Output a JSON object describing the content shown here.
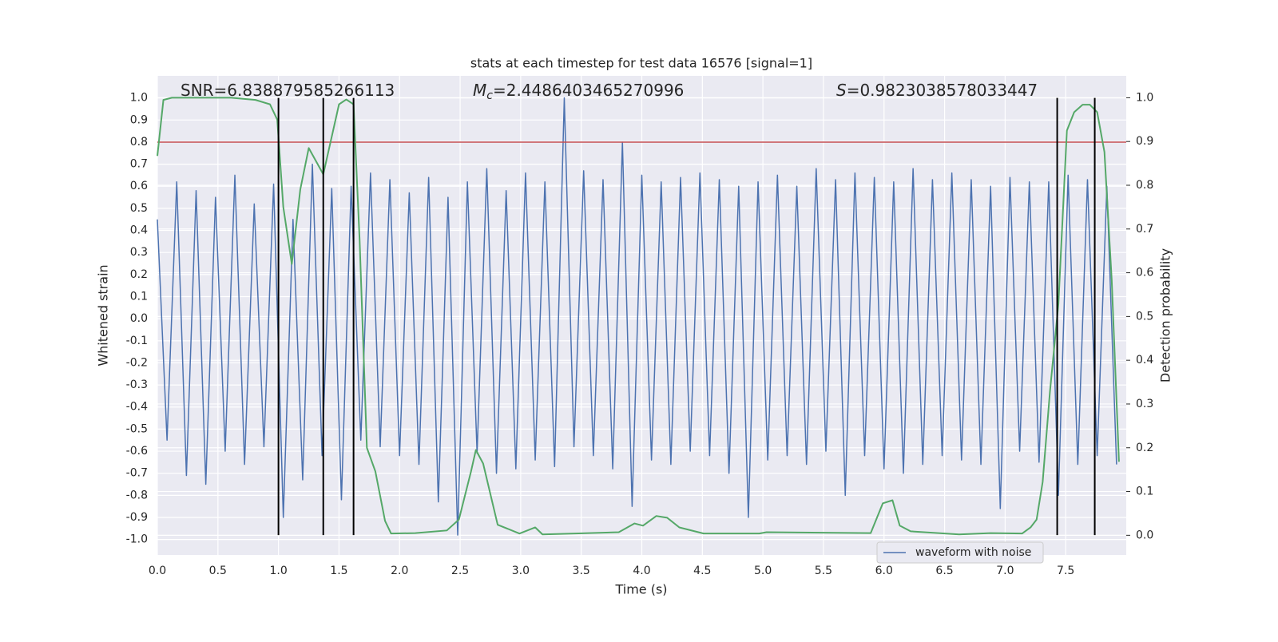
{
  "chart_data": {
    "type": "line",
    "title": "stats at each timestep for test data 16576 [signal=1]",
    "xlabel": "Time (s)",
    "ylabel": "Whitened strain",
    "y2label": "Detection probability",
    "xlim": [
      0,
      8.0
    ],
    "ylim": [
      -1.07,
      1.1
    ],
    "y2lim": [
      -0.045,
      1.05
    ],
    "xticks": [
      {
        "value": 0,
        "label": "0.0"
      },
      0.5,
      {
        "value": 1,
        "label": "1.0"
      },
      1.5,
      {
        "value": 2,
        "label": "2.0"
      },
      2.5,
      {
        "value": 3,
        "label": "3.0"
      },
      3.5,
      {
        "value": 4,
        "label": "4.0"
      },
      4.5,
      {
        "value": 5,
        "label": "5.0"
      },
      5.5,
      {
        "value": 6,
        "label": "6.0"
      },
      6.5,
      {
        "value": 7,
        "label": "7.0"
      },
      7.5
    ],
    "yticks": [
      {
        "value": -1,
        "label": "-1.0"
      },
      -0.9,
      -0.8,
      -0.7,
      -0.6,
      -0.5,
      -0.4,
      -0.3,
      -0.2,
      -0.1,
      {
        "value": 0,
        "label": "0.0"
      },
      0.1,
      0.2,
      0.3,
      0.4,
      0.5,
      0.6,
      0.7,
      0.8,
      0.9,
      {
        "value": 1,
        "label": "1.0"
      }
    ],
    "y2ticks": [
      {
        "value": 0,
        "label": "0.0"
      },
      0.1,
      0.2,
      0.3,
      0.4,
      0.5,
      0.6,
      0.7,
      0.8,
      0.9,
      {
        "value": 1,
        "label": "1.0"
      }
    ],
    "grid": true,
    "legend": "lower right",
    "series": [
      {
        "name": "waveform with noise",
        "color": "#4c72b0",
        "x": [
          0.0,
          0.08,
          0.16,
          0.24,
          0.32,
          0.4,
          0.48,
          0.56,
          0.64,
          0.72,
          0.8,
          0.88,
          0.96,
          1.04,
          1.12,
          1.2,
          1.28,
          1.36,
          1.44,
          1.52,
          1.6,
          1.68,
          1.76,
          1.84,
          1.92,
          2.0,
          2.08,
          2.16,
          2.24,
          2.32,
          2.4,
          2.48,
          2.56,
          2.64,
          2.72,
          2.8,
          2.88,
          2.96,
          3.04,
          3.12,
          3.2,
          3.28,
          3.36,
          3.44,
          3.52,
          3.6,
          3.68,
          3.76,
          3.84,
          3.92,
          4.0,
          4.08,
          4.16,
          4.24,
          4.32,
          4.4,
          4.48,
          4.56,
          4.64,
          4.72,
          4.8,
          4.88,
          4.96,
          5.04,
          5.12,
          5.2,
          5.28,
          5.36,
          5.44,
          5.52,
          5.6,
          5.68,
          5.76,
          5.84,
          5.92,
          6.0,
          6.08,
          6.16,
          6.24,
          6.32,
          6.4,
          6.48,
          6.56,
          6.64,
          6.72,
          6.8,
          6.88,
          6.96,
          7.04,
          7.12,
          7.2,
          7.28,
          7.36,
          7.44,
          7.52,
          7.6,
          7.68,
          7.76,
          7.84,
          7.92
        ],
        "values": [
          0.45,
          -0.55,
          0.62,
          -0.71,
          0.58,
          -0.75,
          0.55,
          -0.6,
          0.65,
          -0.66,
          0.52,
          -0.58,
          0.61,
          -0.9,
          0.45,
          -0.73,
          0.7,
          -0.62,
          0.59,
          -0.82,
          0.6,
          -0.55,
          0.66,
          -0.58,
          0.63,
          -0.62,
          0.57,
          -0.66,
          0.64,
          -0.83,
          0.55,
          -0.98,
          0.62,
          -0.61,
          0.68,
          -0.7,
          0.58,
          -0.68,
          0.66,
          -0.64,
          0.62,
          -0.67,
          1.0,
          -0.58,
          0.67,
          -0.62,
          0.63,
          -0.68,
          0.8,
          -0.85,
          0.65,
          -0.64,
          0.62,
          -0.66,
          0.64,
          -0.6,
          0.66,
          -0.62,
          0.63,
          -0.7,
          0.6,
          -0.9,
          0.62,
          -0.64,
          0.65,
          -0.62,
          0.6,
          -0.66,
          0.68,
          -0.6,
          0.63,
          -0.8,
          0.66,
          -0.62,
          0.64,
          -0.68,
          0.62,
          -0.7,
          0.68,
          -0.66,
          0.63,
          -0.62,
          0.66,
          -0.64,
          0.63,
          -0.66,
          0.6,
          -0.86,
          0.64,
          -0.6,
          0.62,
          -0.65,
          0.62,
          -0.8,
          0.65,
          -0.66,
          0.63,
          -0.62,
          0.6,
          -0.66
        ]
      }
    ],
    "probability": {
      "color": "#55a868",
      "axis": "y2",
      "x": [
        0,
        0.05,
        0.12,
        0.61,
        0.81,
        0.93,
        0.99,
        1.04,
        1.11,
        1.18,
        1.25,
        1.37,
        1.5,
        1.56,
        1.62,
        1.67,
        1.73,
        1.8,
        1.88,
        1.93,
        2.13,
        2.39,
        2.49,
        2.59,
        2.63,
        2.69,
        2.81,
        2.99,
        3.12,
        3.18,
        3.45,
        3.81,
        3.94,
        4.01,
        4.12,
        4.21,
        4.31,
        4.51,
        4.97,
        5.03,
        5.89,
        5.99,
        6.07,
        6.13,
        6.22,
        6.62,
        6.88,
        7.14,
        7.21,
        7.26,
        7.31,
        7.37,
        7.44,
        7.51,
        7.57,
        7.64,
        7.7,
        7.76,
        7.82,
        7.88,
        7.94
      ],
      "values": [
        0.867,
        0.995,
        1.0,
        1.0,
        0.995,
        0.985,
        0.95,
        0.75,
        0.62,
        0.79,
        0.885,
        0.825,
        0.985,
        0.996,
        0.985,
        0.675,
        0.2,
        0.146,
        0.033,
        0.004,
        0.005,
        0.011,
        0.036,
        0.146,
        0.195,
        0.164,
        0.024,
        0.004,
        0.018,
        0.002,
        0.004,
        0.007,
        0.027,
        0.022,
        0.044,
        0.04,
        0.018,
        0.004,
        0.004,
        0.007,
        0.005,
        0.073,
        0.08,
        0.022,
        0.009,
        0.002,
        0.005,
        0.004,
        0.018,
        0.036,
        0.122,
        0.328,
        0.529,
        0.925,
        0.967,
        0.984,
        0.984,
        0.967,
        0.876,
        0.584,
        0.168
      ]
    },
    "hline": {
      "y": 0.8,
      "color": "#c44e52"
    },
    "vlines": {
      "x": [
        1.0,
        1.37,
        1.62,
        7.43,
        7.74
      ],
      "ymin": -0.98,
      "ymax": 1.0,
      "color": "#000000"
    },
    "annotations": [
      {
        "text": "SNR=6.838879585266113"
      },
      {
        "symbol": "M",
        "subscript": "c",
        "text": "=2.4486403465270996"
      },
      {
        "symbol": "S",
        "text": "=0.9823038578033447"
      }
    ]
  }
}
